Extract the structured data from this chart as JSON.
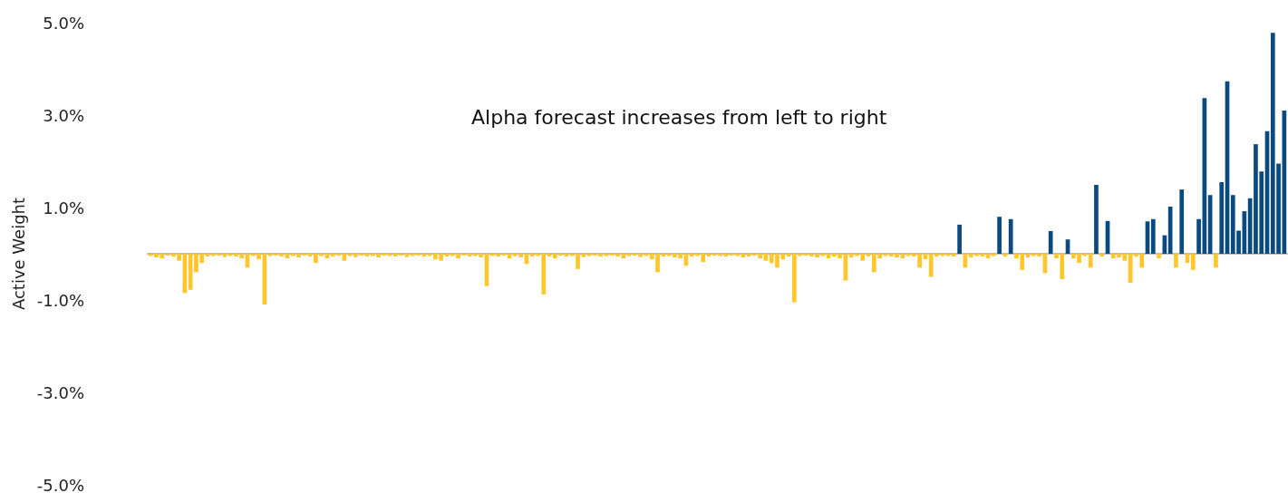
{
  "chart_data": {
    "type": "bar",
    "ylabel": "Active Weight",
    "annotations": [
      "Alpha forecast increases from left to right"
    ],
    "categories": [
      null,
      null,
      null,
      null,
      null,
      null,
      null,
      null,
      null,
      null,
      null,
      null,
      null,
      null,
      null,
      null,
      null,
      null,
      null,
      null,
      null,
      null,
      null,
      null,
      null,
      null,
      null,
      null,
      null,
      null,
      null,
      null,
      null,
      null,
      null,
      null,
      null,
      null,
      null,
      null,
      null,
      null,
      null,
      null,
      null,
      null,
      null,
      null,
      null,
      null,
      null,
      null,
      null,
      null,
      null,
      null,
      null,
      null,
      null,
      null,
      null,
      null,
      null,
      null,
      null,
      null,
      null,
      null,
      null,
      null,
      null,
      null,
      null,
      null,
      null,
      null,
      null,
      null,
      null,
      null,
      null,
      null,
      null,
      null,
      null,
      null,
      null,
      null,
      null,
      null,
      null,
      null,
      null,
      null,
      null,
      null,
      null,
      null,
      null,
      null,
      null,
      null,
      null,
      null,
      null,
      null,
      null,
      null,
      null,
      null,
      null,
      null,
      null,
      null,
      null,
      null,
      null,
      null,
      null,
      null,
      null,
      null,
      null,
      null,
      null,
      null,
      null,
      null,
      null,
      null,
      null,
      null,
      null,
      null,
      null,
      null,
      null,
      null,
      null,
      null,
      null,
      null,
      null,
      null,
      null,
      null,
      null,
      null,
      null,
      null,
      null,
      null,
      null,
      null,
      null,
      null,
      null,
      null,
      null,
      null,
      null,
      null,
      null,
      null,
      null,
      null,
      null,
      null,
      null,
      null,
      null,
      null,
      null,
      null,
      null,
      null,
      null,
      null,
      null,
      null,
      null,
      null,
      null,
      null,
      null,
      null,
      null,
      null,
      null,
      null,
      null,
      null,
      null,
      null,
      null,
      null,
      null,
      null,
      null,
      null
    ],
    "series": [
      {
        "color": "#ffc72c",
        "values": [
          -0.05,
          -0.08,
          -0.1,
          -0.04,
          -0.06,
          -0.15,
          -0.85,
          -0.78,
          -0.4,
          -0.2,
          -0.06,
          -0.05,
          -0.04,
          -0.07,
          -0.05,
          -0.06,
          -0.1,
          -0.3,
          -0.05,
          -0.12,
          -1.1,
          -0.05,
          -0.04,
          -0.06,
          -0.1,
          -0.05,
          -0.08,
          -0.04,
          -0.06,
          -0.2,
          -0.05,
          -0.1,
          -0.06,
          -0.04,
          -0.15,
          -0.05,
          -0.07,
          -0.04,
          -0.06,
          -0.05,
          -0.08,
          -0.04,
          -0.05,
          -0.06,
          -0.04,
          -0.07,
          -0.05,
          -0.04,
          -0.06,
          -0.05,
          -0.12,
          -0.15,
          -0.06,
          -0.05,
          -0.1,
          -0.04,
          -0.06,
          -0.05,
          -0.08,
          -0.7,
          -0.05,
          -0.06,
          -0.04,
          -0.1,
          -0.05,
          -0.08,
          -0.22,
          -0.06,
          -0.05,
          -0.88,
          -0.06,
          -0.1,
          -0.04,
          -0.06,
          -0.05,
          -0.33,
          -0.07,
          -0.05,
          -0.04,
          -0.06,
          -0.05,
          -0.04,
          -0.06,
          -0.1,
          -0.05,
          -0.04,
          -0.07,
          -0.05,
          -0.12,
          -0.4,
          -0.06,
          -0.05,
          -0.08,
          -0.1,
          -0.26,
          -0.06,
          -0.05,
          -0.18,
          -0.06,
          -0.04,
          -0.05,
          -0.06,
          -0.04,
          -0.05,
          -0.08,
          -0.06,
          -0.04,
          -0.1,
          -0.15,
          -0.2,
          -0.3,
          -0.12,
          -0.06,
          -1.05,
          -0.05,
          -0.04,
          -0.06,
          -0.08,
          -0.05,
          -0.1,
          -0.06,
          -0.1,
          -0.58,
          -0.08,
          -0.05,
          -0.15,
          -0.06,
          -0.4,
          -0.1,
          -0.05,
          -0.06,
          -0.08,
          -0.1,
          -0.05,
          -0.06,
          -0.3,
          -0.12,
          -0.5,
          -0.06,
          -0.05,
          -0.05,
          -0.06,
          null,
          -0.3,
          -0.08,
          -0.05,
          -0.06,
          -0.1,
          -0.05,
          null,
          -0.06,
          null,
          -0.1,
          -0.35,
          -0.08,
          -0.05,
          -0.06,
          -0.42,
          null,
          -0.1,
          -0.55,
          null,
          -0.1,
          -0.2,
          -0.05,
          -0.3,
          null,
          -0.06,
          null,
          -0.1,
          -0.08,
          -0.15,
          -0.63,
          -0.06,
          -0.3,
          null,
          null,
          -0.1,
          null,
          null,
          -0.3,
          null,
          -0.2,
          -0.35,
          null,
          null,
          null,
          -0.3,
          null,
          null,
          null,
          null,
          null,
          null,
          null,
          null,
          null,
          null,
          null,
          null
        ]
      },
      {
        "color": "#0b4a7e",
        "values": [
          null,
          null,
          null,
          null,
          null,
          null,
          null,
          null,
          null,
          null,
          null,
          null,
          null,
          null,
          null,
          null,
          null,
          null,
          null,
          null,
          null,
          null,
          null,
          null,
          null,
          null,
          null,
          null,
          null,
          null,
          null,
          null,
          null,
          null,
          null,
          null,
          null,
          null,
          null,
          null,
          null,
          null,
          null,
          null,
          null,
          null,
          null,
          null,
          null,
          null,
          null,
          null,
          null,
          null,
          null,
          null,
          null,
          null,
          null,
          null,
          null,
          null,
          null,
          null,
          null,
          null,
          null,
          null,
          null,
          null,
          null,
          null,
          null,
          null,
          null,
          null,
          null,
          null,
          null,
          null,
          null,
          null,
          null,
          null,
          null,
          null,
          null,
          null,
          null,
          null,
          null,
          null,
          null,
          null,
          null,
          null,
          null,
          null,
          null,
          null,
          null,
          null,
          null,
          null,
          null,
          null,
          null,
          null,
          null,
          null,
          null,
          null,
          null,
          null,
          null,
          null,
          null,
          null,
          null,
          null,
          null,
          null,
          null,
          null,
          null,
          null,
          null,
          null,
          null,
          null,
          null,
          null,
          null,
          null,
          null,
          null,
          null,
          null,
          null,
          null,
          null,
          null,
          0.63,
          null,
          null,
          null,
          null,
          null,
          null,
          0.8,
          null,
          0.75,
          null,
          null,
          null,
          null,
          null,
          null,
          0.49,
          null,
          null,
          0.31,
          null,
          null,
          null,
          null,
          1.49,
          null,
          0.71,
          null,
          null,
          null,
          null,
          null,
          null,
          0.7,
          0.75,
          null,
          0.4,
          1.02,
          null,
          1.39,
          null,
          null,
          0.75,
          3.37,
          1.27,
          null,
          1.55,
          3.73,
          1.27,
          0.5,
          0.92,
          1.2,
          2.37,
          1.78,
          2.65,
          4.78,
          1.95,
          3.1
        ]
      }
    ],
    "ylim": [
      -5,
      5
    ],
    "yticks": [
      {
        "value": -5,
        "label": "-5.0%"
      },
      {
        "value": -3,
        "label": "-3.0%"
      },
      {
        "value": -1,
        "label": "-1.0%"
      },
      {
        "value": 1,
        "label": "1.0%"
      },
      {
        "value": 3,
        "label": "3.0%"
      },
      {
        "value": 5,
        "label": "5.0%"
      }
    ],
    "grid": false,
    "tick_labels": "y"
  }
}
